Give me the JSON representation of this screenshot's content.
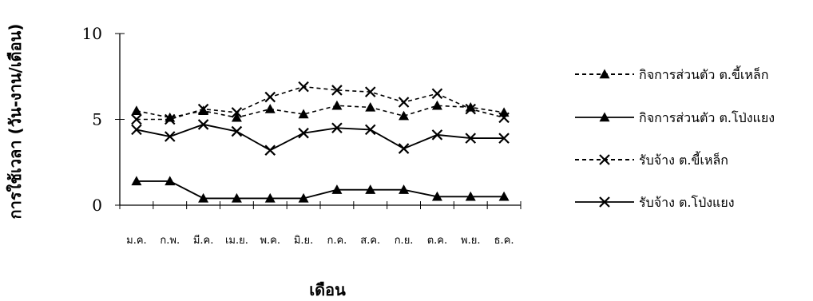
{
  "chart_data": {
    "type": "line",
    "title": "",
    "xlabel": "เดือน",
    "ylabel": "การใช้เวลา (วัน-งาน/เดือน)",
    "ylim": [
      0,
      10
    ],
    "yticks": [
      "0",
      "5",
      "10"
    ],
    "categories": [
      "ม.ค.",
      "ก.พ.",
      "มี.ค.",
      "เม.ย.",
      "พ.ค.",
      "มิ.ย.",
      "ก.ค.",
      "ส.ค.",
      "ก.ย.",
      "ต.ค.",
      "พ.ย.",
      "ธ.ค."
    ],
    "legend_position": "right",
    "grid": false,
    "series": [
      {
        "name": "กิจการส่วนตัว ต.ขี้เหล็ก",
        "line": "dashed",
        "marker": "triangle",
        "values": [
          5.5,
          5.1,
          5.5,
          5.1,
          5.6,
          5.3,
          5.8,
          5.7,
          5.2,
          5.8,
          5.7,
          5.4
        ]
      },
      {
        "name": "กิจการส่วนตัว ต.โป่งแยง",
        "line": "solid",
        "marker": "triangle",
        "values": [
          1.4,
          1.4,
          0.4,
          0.4,
          0.4,
          0.4,
          0.9,
          0.9,
          0.9,
          0.5,
          0.5,
          0.5
        ]
      },
      {
        "name": "รับจ้าง ต.ขี้เหล็ก",
        "line": "dashed",
        "marker": "x",
        "values": [
          5.0,
          5.0,
          5.6,
          5.4,
          6.3,
          6.9,
          6.7,
          6.6,
          6.0,
          6.5,
          5.6,
          5.1
        ]
      },
      {
        "name": "รับจ้าง ต.โป่งแยง",
        "line": "solid",
        "marker": "x",
        "values": [
          4.4,
          4.0,
          4.7,
          4.3,
          3.2,
          4.2,
          4.5,
          4.4,
          3.3,
          4.1,
          3.9,
          3.9
        ]
      }
    ]
  }
}
